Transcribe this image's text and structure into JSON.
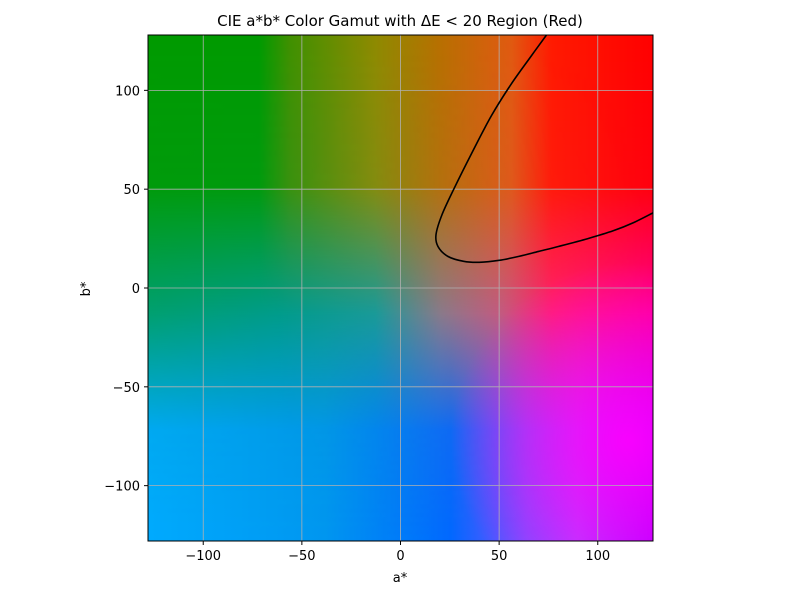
{
  "chart_data": {
    "type": "heatmap",
    "title": "CIE a*b* Color Gamut with ΔE < 20 Region (Red)",
    "xlabel": "a*",
    "ylabel": "b*",
    "xlim": [
      -128,
      128
    ],
    "ylim": [
      -128,
      128
    ],
    "xticks": [
      {
        "value": -100,
        "label": "−100"
      },
      {
        "value": -50,
        "label": "−50"
      },
      {
        "value": 0,
        "label": "0"
      },
      {
        "value": 50,
        "label": "50"
      },
      {
        "value": 100,
        "label": "100"
      }
    ],
    "yticks": [
      {
        "value": -100,
        "label": "−100"
      },
      {
        "value": -50,
        "label": "−50"
      },
      {
        "value": 0,
        "label": "0"
      },
      {
        "value": 50,
        "label": "50"
      },
      {
        "value": 100,
        "label": "100"
      }
    ],
    "grid": true,
    "contour": {
      "color": "#000000",
      "points": [
        [
          74,
          128
        ],
        [
          66,
          117
        ],
        [
          56,
          103
        ],
        [
          46,
          87
        ],
        [
          36,
          68
        ],
        [
          27,
          50
        ],
        [
          21,
          37
        ],
        [
          18,
          27
        ],
        [
          19,
          21
        ],
        [
          24,
          16
        ],
        [
          32,
          13.5
        ],
        [
          40,
          13
        ],
        [
          50,
          14
        ],
        [
          60,
          16
        ],
        [
          70,
          18.5
        ],
        [
          80,
          21
        ],
        [
          95,
          25
        ],
        [
          108,
          29
        ],
        [
          118,
          33
        ],
        [
          128,
          38
        ]
      ]
    }
  }
}
